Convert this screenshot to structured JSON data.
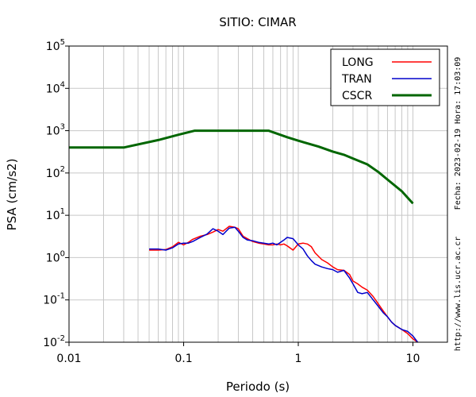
{
  "chart_data": {
    "type": "line",
    "title": "SITIO: CIMAR",
    "xlabel": "Periodo (s)",
    "ylabel": "PSA (cm/s2)",
    "xscale": "log",
    "yscale": "log",
    "xlim": [
      0.01,
      20
    ],
    "ylim": [
      0.01,
      100000
    ],
    "x_ticks": [
      {
        "value": 0.01,
        "label": "0.01"
      },
      {
        "value": 0.1,
        "label": "0.1"
      },
      {
        "value": 1,
        "label": "1"
      },
      {
        "value": 10,
        "label": "10"
      }
    ],
    "y_ticks": [
      {
        "value": 0.01,
        "base": "10",
        "exp": "-2"
      },
      {
        "value": 0.1,
        "base": "10",
        "exp": "-1"
      },
      {
        "value": 1,
        "base": "10",
        "exp": "0"
      },
      {
        "value": 10,
        "base": "10",
        "exp": "1"
      },
      {
        "value": 100,
        "base": "10",
        "exp": "2"
      },
      {
        "value": 1000,
        "base": "10",
        "exp": "3"
      },
      {
        "value": 10000,
        "base": "10",
        "exp": "4"
      },
      {
        "value": 100000,
        "base": "10",
        "exp": "5"
      }
    ],
    "grid": true,
    "legend_position": "top-right",
    "series": [
      {
        "name": "LONG",
        "color": "#ff0000",
        "x": [
          0.05,
          0.06,
          0.07,
          0.08,
          0.09,
          0.1,
          0.11,
          0.12,
          0.14,
          0.16,
          0.18,
          0.2,
          0.22,
          0.25,
          0.28,
          0.3,
          0.33,
          0.36,
          0.4,
          0.45,
          0.5,
          0.55,
          0.6,
          0.65,
          0.7,
          0.75,
          0.8,
          0.9,
          1.0,
          1.1,
          1.2,
          1.3,
          1.4,
          1.6,
          1.8,
          2.0,
          2.2,
          2.5,
          2.8,
          3.0,
          3.3,
          3.6,
          4.0,
          4.5,
          5.0,
          5.5,
          6.0,
          6.5,
          7.0,
          8.0,
          9.0,
          10.0,
          11.0
        ],
        "y": [
          1.5,
          1.5,
          1.55,
          1.8,
          2.3,
          2.0,
          2.3,
          2.7,
          3.2,
          3.5,
          4.0,
          4.6,
          4.2,
          5.5,
          5.2,
          4.8,
          3.2,
          2.8,
          2.4,
          2.2,
          2.1,
          2.0,
          2.0,
          2.1,
          2.0,
          2.1,
          1.9,
          1.5,
          2.1,
          2.2,
          2.1,
          1.8,
          1.3,
          0.9,
          0.75,
          0.6,
          0.52,
          0.5,
          0.4,
          0.28,
          0.24,
          0.2,
          0.17,
          0.12,
          0.08,
          0.055,
          0.04,
          0.03,
          0.025,
          0.02,
          0.016,
          0.012,
          0.01
        ]
      },
      {
        "name": "TRAN",
        "color": "#0000cc",
        "x": [
          0.05,
          0.06,
          0.07,
          0.08,
          0.09,
          0.1,
          0.11,
          0.12,
          0.14,
          0.16,
          0.18,
          0.2,
          0.22,
          0.25,
          0.28,
          0.3,
          0.33,
          0.36,
          0.4,
          0.45,
          0.5,
          0.55,
          0.6,
          0.65,
          0.7,
          0.75,
          0.8,
          0.9,
          1.0,
          1.1,
          1.2,
          1.3,
          1.4,
          1.6,
          1.8,
          2.0,
          2.2,
          2.5,
          2.8,
          3.0,
          3.3,
          3.6,
          4.0,
          4.5,
          5.0,
          5.5,
          6.0,
          6.5,
          7.0,
          8.0,
          9.0,
          10.0,
          11.0
        ],
        "y": [
          1.6,
          1.6,
          1.5,
          1.7,
          2.1,
          2.2,
          2.2,
          2.4,
          3.0,
          3.6,
          4.8,
          4.2,
          3.5,
          5.0,
          5.2,
          4.2,
          3.0,
          2.6,
          2.5,
          2.3,
          2.2,
          2.1,
          2.2,
          2.0,
          2.3,
          2.6,
          3.0,
          2.8,
          2.0,
          1.6,
          1.1,
          0.85,
          0.7,
          0.6,
          0.55,
          0.52,
          0.45,
          0.5,
          0.33,
          0.24,
          0.15,
          0.14,
          0.15,
          0.1,
          0.07,
          0.05,
          0.04,
          0.03,
          0.025,
          0.02,
          0.018,
          0.014,
          0.01
        ]
      },
      {
        "name": "CSCR",
        "color": "#006600",
        "x": [
          0.01,
          0.03,
          0.06,
          0.09,
          0.125,
          0.55,
          0.8,
          1.0,
          1.5,
          2.0,
          2.5,
          3.0,
          4.0,
          5.0,
          6.0,
          8.0,
          10.0
        ],
        "y": [
          400,
          400,
          600,
          800,
          1000,
          1000,
          700,
          580,
          420,
          320,
          270,
          220,
          160,
          105,
          70,
          37,
          19
        ]
      }
    ],
    "side_notes": {
      "timestamp": "Fecha: 2023-02-19 Hora: 17:03:09",
      "url": "http://www.lis.ucr.ac.cr"
    }
  }
}
